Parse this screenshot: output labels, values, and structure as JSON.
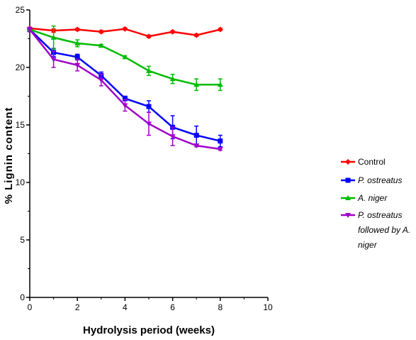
{
  "chart_data": {
    "type": "line",
    "xlabel": "Hydrolysis period (weeks)",
    "ylabel": "% Lignin content",
    "xlim": [
      0,
      10
    ],
    "ylim": [
      0,
      25
    ],
    "x_ticks": [
      "0",
      "2",
      "4",
      "6",
      "8",
      "10"
    ],
    "y_ticks": [
      "0",
      "5",
      "10",
      "15",
      "20",
      "25"
    ],
    "x": [
      0,
      1,
      2,
      3,
      4,
      5,
      6,
      7,
      8
    ],
    "grid": false,
    "legend_position": "right",
    "series": [
      {
        "name": "Control",
        "color": "#ff0000",
        "marker": "diamond",
        "italic": false,
        "values": [
          23.4,
          23.2,
          23.3,
          23.1,
          23.35,
          22.7,
          23.1,
          22.8,
          23.3
        ],
        "errors": [
          0.1,
          0.15,
          0.1,
          0.1,
          0.1,
          0.1,
          0.1,
          0.1,
          0.1
        ]
      },
      {
        "name": "P. ostreatus",
        "color": "#0000ff",
        "marker": "square",
        "italic": true,
        "values": [
          23.3,
          21.3,
          20.9,
          19.3,
          17.3,
          16.6,
          14.8,
          14.1,
          13.6
        ],
        "errors": [
          0.2,
          0.35,
          0.25,
          0.3,
          0.2,
          0.5,
          1.0,
          0.8,
          0.5
        ]
      },
      {
        "name": "A. niger",
        "color": "#00bb00",
        "marker": "triangle-up",
        "italic": true,
        "values": [
          23.3,
          22.6,
          22.1,
          21.9,
          20.9,
          19.7,
          19.0,
          18.5,
          18.5
        ],
        "errors": [
          0.2,
          1.0,
          0.3,
          0.1,
          0.1,
          0.4,
          0.4,
          0.5,
          0.5
        ]
      },
      {
        "name": "P. ostreatus followed by A. niger",
        "legend_lines": [
          "P. ostreatus",
          "followed by A.",
          "niger"
        ],
        "color": "#a000c8",
        "marker": "triangle-down",
        "italic": true,
        "values": [
          23.3,
          20.7,
          20.2,
          18.9,
          16.7,
          15.1,
          14.0,
          13.2,
          12.9
        ],
        "errors": [
          0.2,
          0.7,
          0.5,
          0.5,
          0.5,
          1.0,
          0.8,
          0.1,
          0.1
        ]
      }
    ]
  }
}
